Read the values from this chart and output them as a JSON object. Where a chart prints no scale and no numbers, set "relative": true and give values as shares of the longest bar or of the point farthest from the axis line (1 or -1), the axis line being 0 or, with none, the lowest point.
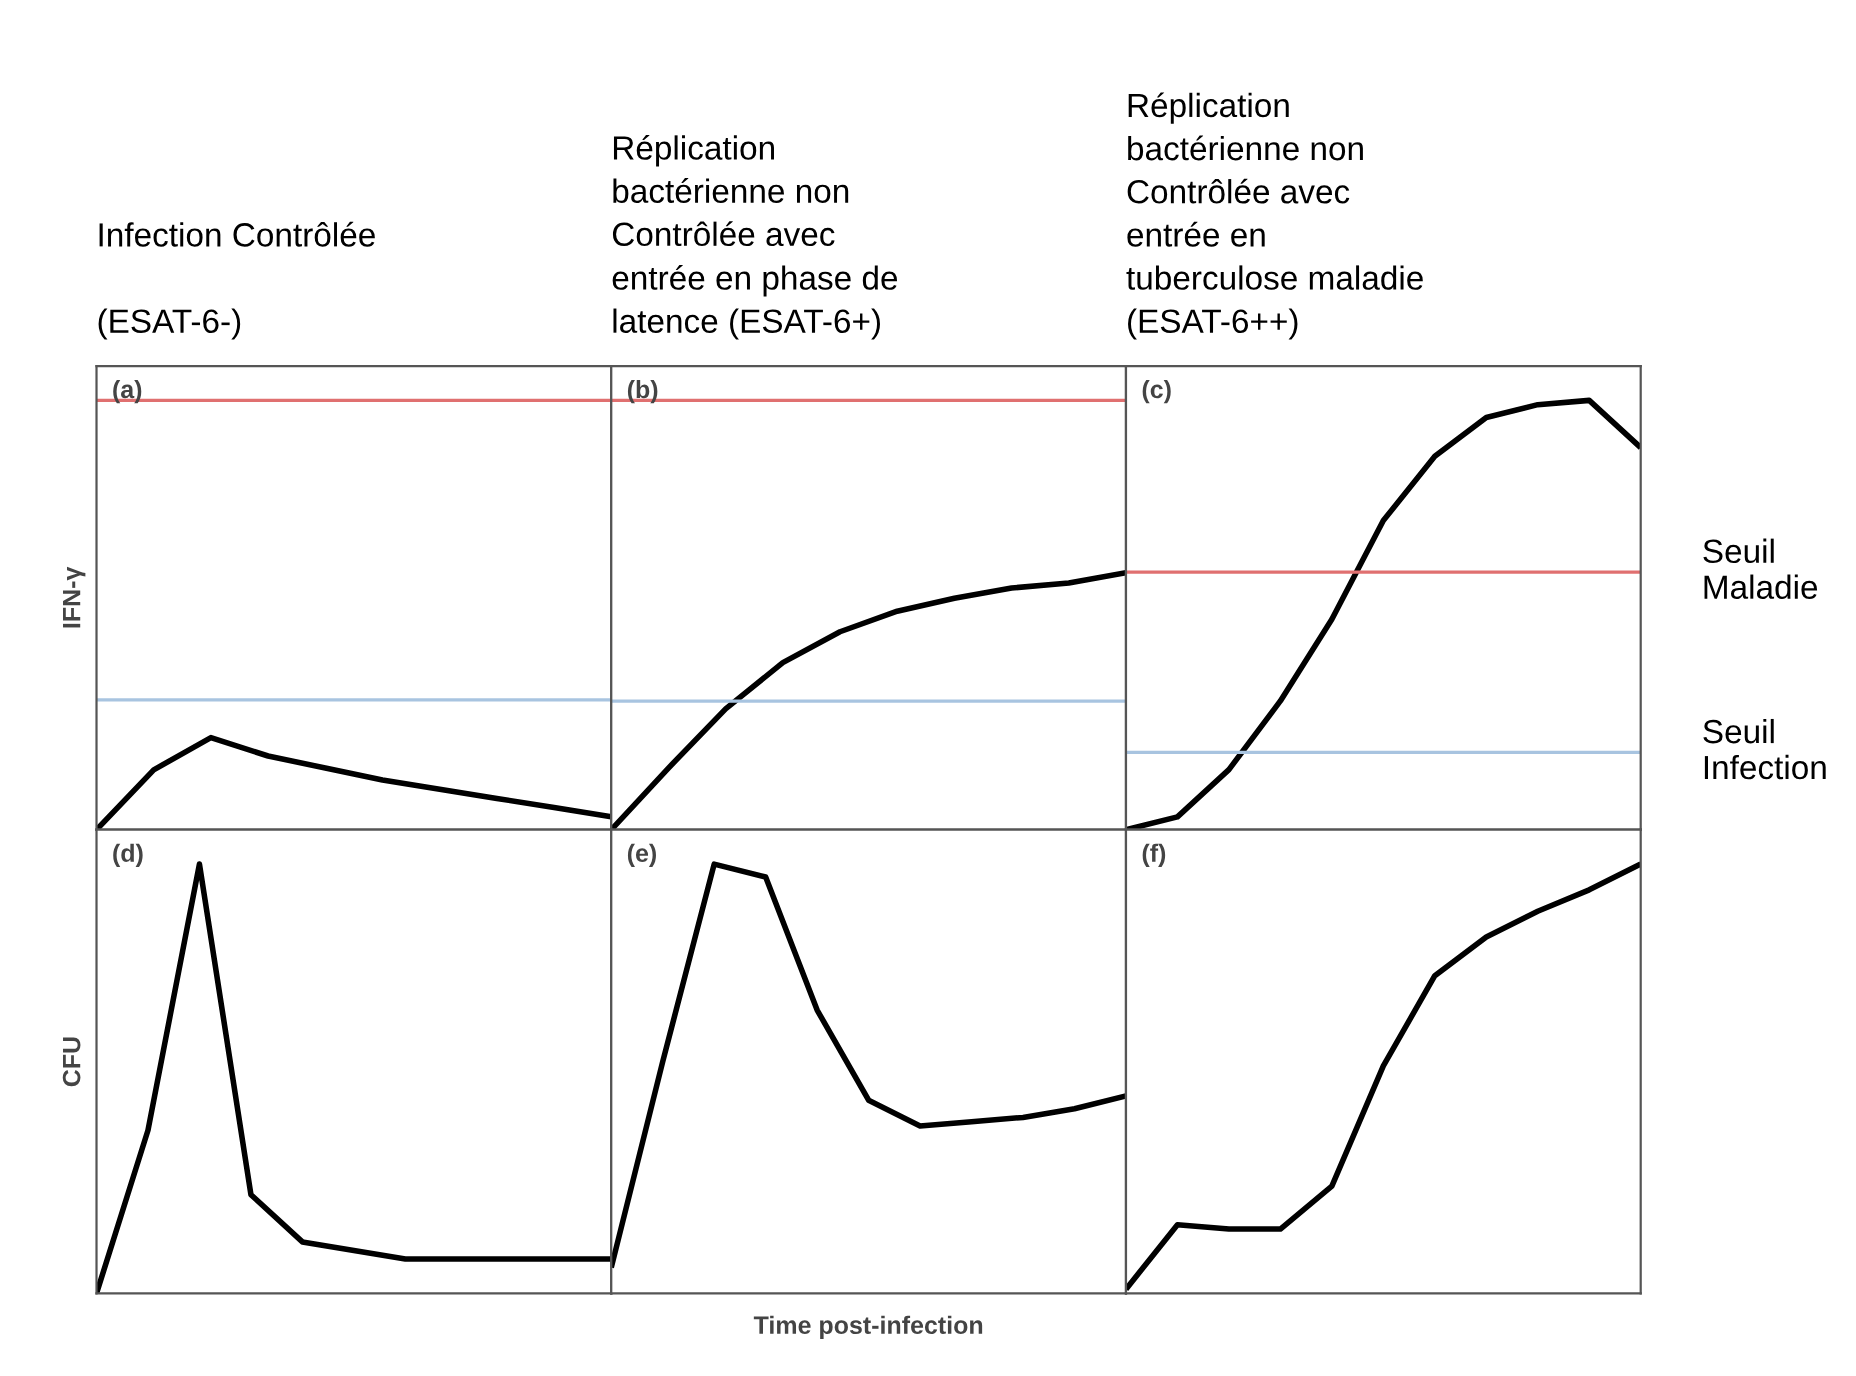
{
  "chart_data": [
    {
      "type": "line",
      "relative": true,
      "title": "Infection Contrôlée\n\n(ESAT-6-)",
      "ylabel": "IFN-γ",
      "annotations": [
        "(a)"
      ],
      "categories": [
        null,
        null,
        null,
        null,
        null,
        null,
        null,
        null,
        null,
        null
      ],
      "series": [
        {
          "color": "#000000",
          "values": [
            0,
            0.65,
            1,
            0.8,
            0.67,
            0.54,
            0.44,
            0.34,
            0.24,
            0.14
          ]
        }
      ],
      "ref_lines": [
        {
          "axis": "y",
          "value": 4.66,
          "color": "#e07070"
        },
        {
          "axis": "y",
          "value": 1.41,
          "color": "#a8c4e0"
        }
      ]
    },
    {
      "type": "line",
      "relative": true,
      "title": "Réplication\nbactérienne non\nContrôlée avec\nentrée en phase de\nlatence (ESAT-6+)",
      "annotations": [
        "(b)"
      ],
      "categories": [
        null,
        null,
        null,
        null,
        null,
        null,
        null,
        null,
        null,
        null
      ],
      "series": [
        {
          "color": "#000000",
          "values": [
            0,
            0.24,
            0.47,
            0.65,
            0.77,
            0.85,
            0.9,
            0.94,
            0.96,
            1
          ]
        }
      ],
      "ref_lines": [
        {
          "axis": "y",
          "value": 1.67,
          "color": "#e07070"
        },
        {
          "axis": "y",
          "value": 0.5,
          "color": "#a8c4e0"
        }
      ]
    },
    {
      "type": "line",
      "relative": true,
      "title": "Réplication\nbactérienne non\nContrôlée avec\nentrée en\ntuberculose maladie\n(ESAT-6++)",
      "annotations": [
        "(c)"
      ],
      "categories": [
        null,
        null,
        null,
        null,
        null,
        null,
        null,
        null,
        null,
        null,
        null
      ],
      "series": [
        {
          "color": "#000000",
          "values": [
            0,
            0.03,
            0.14,
            0.3,
            0.49,
            0.72,
            0.87,
            0.96,
            0.99,
            1,
            0.89
          ]
        }
      ],
      "ref_lines": [
        {
          "axis": "y",
          "value": 0.6,
          "label": "Seuil\nMaladie",
          "color": "#e07070"
        },
        {
          "axis": "y",
          "value": 0.18,
          "label": "Seuil\nInfection",
          "color": "#a8c4e0"
        }
      ]
    },
    {
      "type": "line",
      "relative": true,
      "ylabel": "CFU",
      "annotations": [
        "(d)"
      ],
      "categories": [
        null,
        null,
        null,
        null,
        null,
        null,
        null,
        null,
        null,
        null,
        null
      ],
      "series": [
        {
          "color": "#000000",
          "values": [
            0,
            0.38,
            1,
            0.23,
            0.12,
            0.1,
            0.08,
            0.08,
            0.08,
            0.08,
            0.08
          ]
        }
      ]
    },
    {
      "type": "line",
      "relative": true,
      "xlabel": "Time post-infection",
      "annotations": [
        "(e)"
      ],
      "categories": [
        null,
        null,
        null,
        null,
        null,
        null,
        null,
        null,
        null,
        null,
        null
      ],
      "series": [
        {
          "color": "#000000",
          "values": [
            0.06,
            0.54,
            1,
            0.97,
            0.66,
            0.45,
            0.39,
            0.4,
            0.41,
            0.43,
            0.46
          ]
        }
      ]
    },
    {
      "type": "line",
      "relative": true,
      "annotations": [
        "(f)"
      ],
      "categories": [
        null,
        null,
        null,
        null,
        null,
        null,
        null,
        null,
        null,
        null,
        null
      ],
      "series": [
        {
          "color": "#000000",
          "values": [
            0.01,
            0.16,
            0.15,
            0.15,
            0.25,
            0.53,
            0.74,
            0.83,
            0.89,
            0.94,
            1
          ]
        }
      ]
    }
  ]
}
